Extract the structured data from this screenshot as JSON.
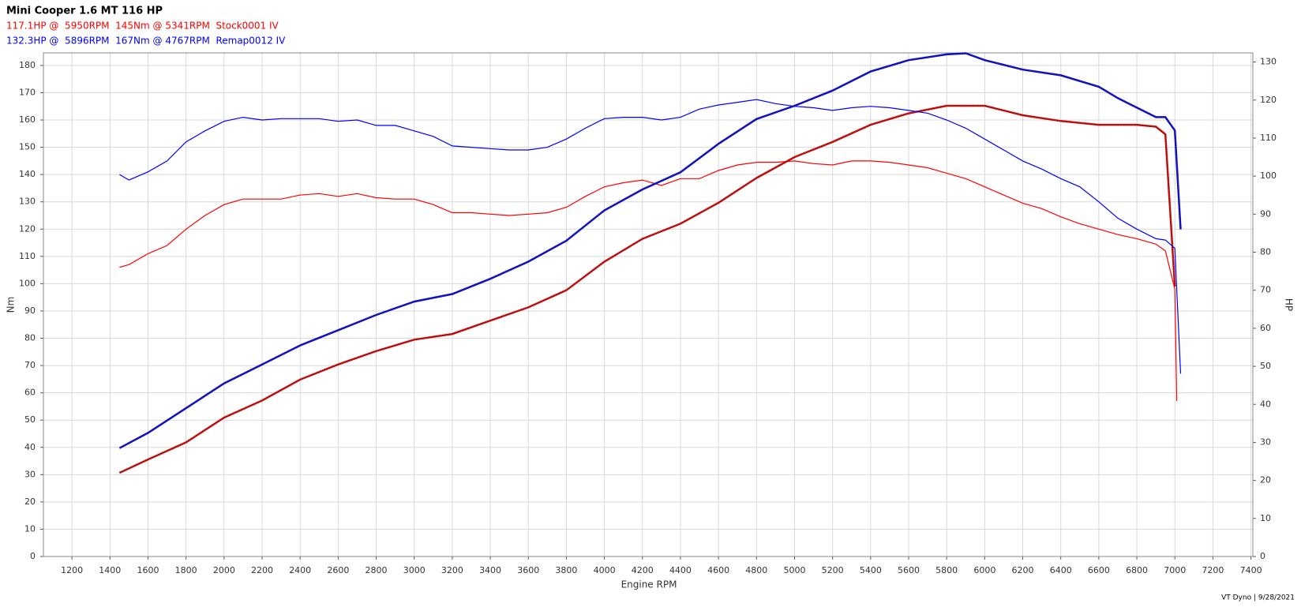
{
  "chart_data": {
    "type": "line",
    "title": "Mini Cooper 1.6 MT 116 HP",
    "subtitles": [
      {
        "text": "117.1HP @  5950RPM  145Nm @ 5341RPM  Stock0001 IV",
        "color": "#ff0000"
      },
      {
        "text": "132.3HP @  5896RPM  167Nm @ 4767RPM  Remap0012 IV",
        "color": "#0000ff"
      }
    ],
    "xlabel": "Engine RPM",
    "ylabel": "Nm",
    "y2label": "HP",
    "footer": "VT Dyno | 9/28/2021",
    "xlim": [
      1050,
      7410
    ],
    "ylim": [
      0,
      184.6
    ],
    "y2lim": [
      0,
      132.4
    ],
    "xticks": [
      1200,
      1400,
      1600,
      1800,
      2000,
      2200,
      2400,
      2600,
      2800,
      3000,
      3200,
      3400,
      3600,
      3800,
      4000,
      4200,
      4400,
      4600,
      4800,
      5000,
      5200,
      5400,
      5600,
      5800,
      6000,
      6200,
      6400,
      6600,
      6800,
      7000,
      7200,
      7400
    ],
    "yticks": [
      0,
      10,
      20,
      30,
      40,
      50,
      60,
      70,
      80,
      90,
      100,
      110,
      120,
      130,
      140,
      150,
      160,
      170,
      180
    ],
    "y2ticks": [
      0,
      10,
      20,
      30,
      40,
      50,
      60,
      70,
      80,
      90,
      100,
      110,
      120,
      130
    ],
    "grid": true,
    "series": [
      {
        "color": "#ff0000",
        "axis": "y",
        "x": [
          1450,
          1500,
          1600,
          1700,
          1800,
          1900,
          2000,
          2100,
          2200,
          2300,
          2400,
          2500,
          2600,
          2700,
          2800,
          2900,
          3000,
          3100,
          3200,
          3300,
          3400,
          3500,
          3600,
          3700,
          3800,
          3900,
          4000,
          4100,
          4200,
          4300,
          4400,
          4500,
          4600,
          4700,
          4800,
          4900,
          5000,
          5100,
          5200,
          5300,
          5400,
          5500,
          5600,
          5700,
          5800,
          5900,
          6000,
          6100,
          6200,
          6300,
          6400,
          6500,
          6600,
          6700,
          6800,
          6900,
          6950,
          7000,
          7010
        ],
        "values": [
          106,
          107,
          111,
          114,
          120,
          125,
          129,
          131,
          131,
          131,
          132.5,
          133,
          132,
          133,
          131.5,
          131,
          131,
          129,
          126,
          126,
          125.5,
          125,
          125.5,
          126,
          128,
          132,
          135.5,
          137,
          138,
          136,
          138.5,
          138.5,
          141.5,
          143.5,
          144.5,
          144.5,
          145,
          144,
          143.5,
          145,
          145,
          144.5,
          143.5,
          142.5,
          140.5,
          138.5,
          135.5,
          132.5,
          129.5,
          127.5,
          124.5,
          122,
          120,
          118,
          116.5,
          114.5,
          112,
          98,
          57
        ]
      },
      {
        "color": "#ff0000",
        "axis": "y2",
        "line_style": "dotted",
        "x": [
          1450,
          1600,
          1800,
          2000,
          2200,
          2400,
          2600,
          2800,
          3000,
          3200,
          3400,
          3600,
          3800,
          4000,
          4200,
          4400,
          4600,
          4800,
          5000,
          5200,
          5400,
          5600,
          5800,
          6000,
          6200,
          6400,
          6600,
          6800,
          6900,
          6950,
          7000
        ],
        "values": [
          22,
          25.5,
          30,
          36.5,
          41,
          46.5,
          50.5,
          54,
          57,
          58.5,
          62,
          65.5,
          70,
          77.5,
          83.5,
          87.5,
          93,
          99.5,
          105,
          109,
          113.5,
          116.5,
          118.5,
          118.5,
          116,
          114.5,
          113.5,
          113.5,
          113,
          111,
          71
        ]
      },
      {
        "color": "#0000ff",
        "axis": "y",
        "x": [
          1450,
          1500,
          1600,
          1700,
          1800,
          1900,
          2000,
          2100,
          2200,
          2300,
          2400,
          2500,
          2600,
          2700,
          2800,
          2900,
          3000,
          3100,
          3200,
          3300,
          3400,
          3500,
          3600,
          3700,
          3800,
          3900,
          4000,
          4100,
          4200,
          4300,
          4400,
          4500,
          4600,
          4700,
          4800,
          4900,
          5000,
          5100,
          5200,
          5300,
          5400,
          5500,
          5600,
          5700,
          5800,
          5900,
          6000,
          6100,
          6200,
          6300,
          6400,
          6500,
          6600,
          6700,
          6800,
          6900,
          6950,
          7000,
          7030
        ],
        "values": [
          140,
          138,
          141,
          145,
          152,
          156,
          159.5,
          161,
          160,
          160.5,
          160.5,
          160.5,
          159.5,
          160,
          158,
          158,
          156,
          154,
          150.5,
          150,
          149.5,
          149,
          149,
          150,
          153,
          157,
          160.5,
          161,
          161,
          160,
          161,
          164,
          165.5,
          166.5,
          167.5,
          166,
          165,
          164.5,
          163.5,
          164.5,
          165,
          164.5,
          163.5,
          162.5,
          160,
          157,
          153,
          149,
          145,
          142,
          138.5,
          135.5,
          130,
          124,
          120,
          116.5,
          116,
          113,
          67
        ]
      },
      {
        "color": "#0000ff",
        "axis": "y2",
        "line_style": "dotted",
        "x": [
          1450,
          1600,
          1800,
          2000,
          2200,
          2400,
          2600,
          2800,
          3000,
          3200,
          3400,
          3600,
          3800,
          4000,
          4200,
          4400,
          4600,
          4800,
          5000,
          5200,
          5400,
          5600,
          5800,
          5900,
          6000,
          6200,
          6400,
          6600,
          6700,
          6800,
          6900,
          6950,
          7000,
          7030
        ],
        "values": [
          28.5,
          32.5,
          39,
          45.5,
          50.5,
          55.5,
          59.5,
          63.5,
          67,
          69,
          73,
          77.5,
          83,
          91,
          96.5,
          101,
          108.5,
          115,
          118.5,
          122.5,
          127.5,
          130.5,
          132,
          132.3,
          130.5,
          128,
          126.5,
          123.5,
          120.5,
          118,
          115.5,
          115.5,
          112,
          86
        ]
      }
    ]
  }
}
